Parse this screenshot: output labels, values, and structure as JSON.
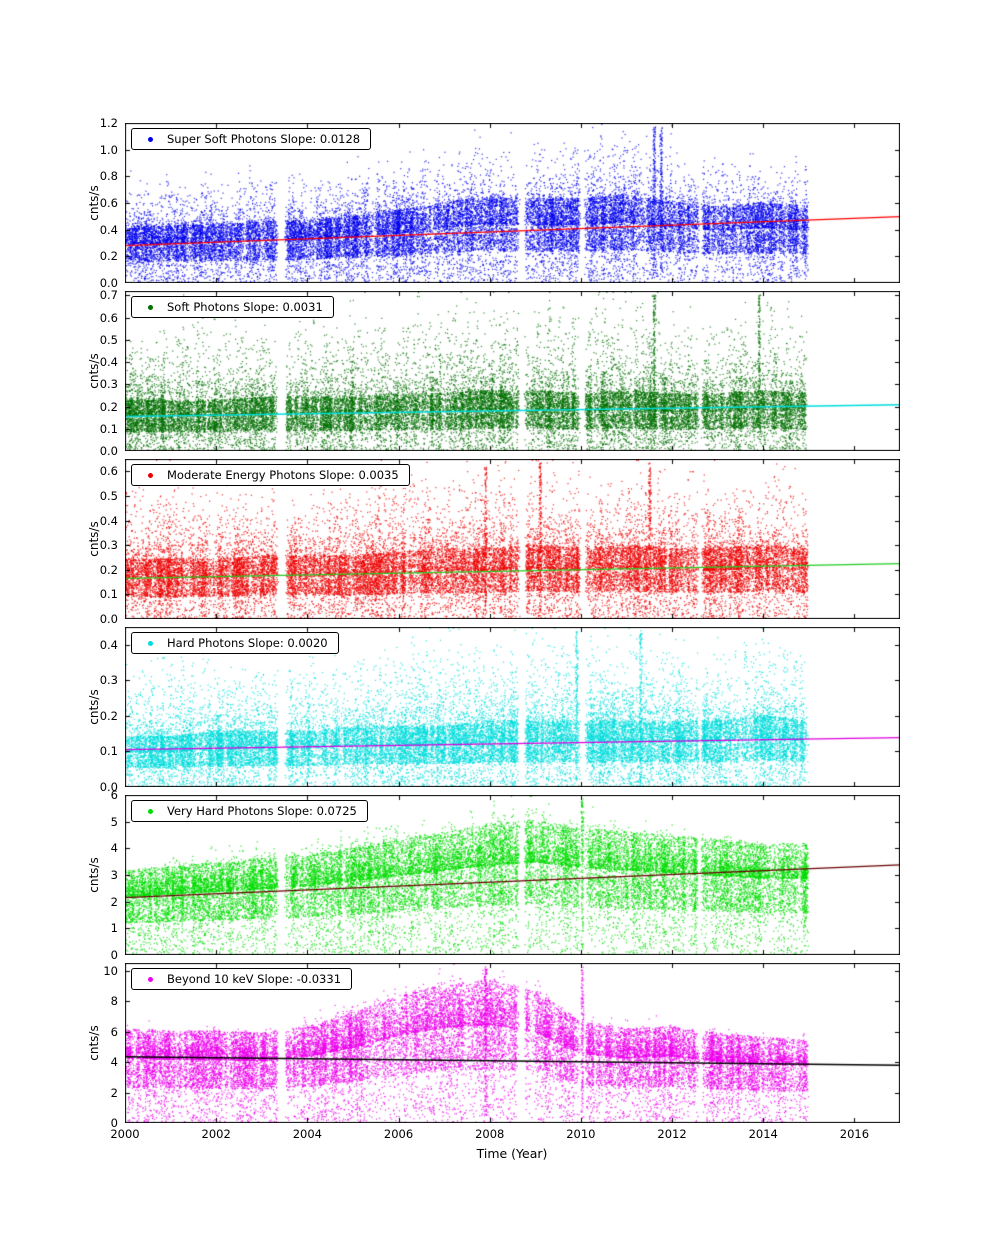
{
  "figure": {
    "background": "#ffffff"
  },
  "chart_data": {
    "type": "scatter",
    "title": "",
    "xlabel": "Time (Year)",
    "x_range": [
      2000,
      2017
    ],
    "x_data_range": [
      2000,
      2014.95
    ],
    "x_ticks": [
      2000,
      2002,
      2004,
      2006,
      2008,
      2010,
      2012,
      2014,
      2016
    ],
    "x_tick_labels": [
      "2000",
      "2002",
      "2004",
      "2006",
      "2008",
      "2010",
      "2012",
      "2014",
      "2016"
    ],
    "profile_years_range": [
      2000,
      2015
    ],
    "gap_bands": [
      [
        2003.32,
        2003.52
      ],
      [
        2008.62,
        2008.78
      ],
      [
        2009.95,
        2010.1
      ],
      [
        2012.55,
        2012.65
      ]
    ],
    "grid": false,
    "legend_position": "upper-left",
    "panels": [
      {
        "name": "super-soft-photons",
        "legend_label": "Super Soft Photons Slope: 0.0128",
        "slope": 0.0128,
        "ylabel": "cnts/s",
        "ylim": [
          0,
          1.2
        ],
        "yticks": [
          0.0,
          0.2,
          0.4,
          0.6,
          0.8,
          1.0,
          1.2
        ],
        "ytick_labels": [
          "0.0",
          "0.2",
          "0.4",
          "0.6",
          "0.8",
          "1.0",
          "1.2"
        ],
        "point_color": "#0000ee",
        "line_color": "#ff0000",
        "trend": {
          "x": [
            2000,
            2017
          ],
          "y": [
            0.28,
            0.498
          ]
        },
        "mean_level": [
          0.3,
          0.3,
          0.31,
          0.32,
          0.33,
          0.35,
          0.38,
          0.42,
          0.45,
          0.44,
          0.44,
          0.46,
          0.42,
          0.4,
          0.42,
          0.4
        ],
        "upper_level": [
          0.75,
          0.78,
          0.8,
          0.82,
          0.8,
          0.85,
          0.95,
          1.0,
          1.05,
          1.08,
          1.1,
          1.15,
          1.0,
          0.92,
          0.88,
          0.82
        ],
        "spike_years": [
          2011.6,
          2011.75
        ],
        "seed": 1
      },
      {
        "name": "soft-photons",
        "legend_label": "Soft Photons Slope: 0.0031",
        "slope": 0.0031,
        "ylabel": "cnts/s",
        "ylim": [
          0,
          0.72
        ],
        "yticks": [
          0.0,
          0.1,
          0.2,
          0.3,
          0.4,
          0.5,
          0.6,
          0.7
        ],
        "ytick_labels": [
          "0.0",
          "0.1",
          "0.2",
          "0.3",
          "0.4",
          "0.5",
          "0.6",
          "0.7"
        ],
        "point_color": "#007000",
        "line_color": "#00dddd",
        "trend": {
          "x": [
            2000,
            2017
          ],
          "y": [
            0.155,
            0.208
          ]
        },
        "mean_level": [
          0.16,
          0.16,
          0.16,
          0.17,
          0.17,
          0.17,
          0.18,
          0.18,
          0.19,
          0.19,
          0.18,
          0.19,
          0.18,
          0.18,
          0.19,
          0.18
        ],
        "upper_level": [
          0.55,
          0.58,
          0.58,
          0.55,
          0.58,
          0.6,
          0.62,
          0.65,
          0.68,
          0.68,
          0.65,
          0.7,
          0.62,
          0.6,
          0.65,
          0.6
        ],
        "spike_years": [
          2011.6,
          2013.9
        ],
        "seed": 2
      },
      {
        "name": "moderate-energy-photons",
        "legend_label": "Moderate Energy Photons Slope: 0.0035",
        "slope": 0.0035,
        "ylabel": "cnts/s",
        "ylim": [
          0,
          0.65
        ],
        "yticks": [
          0.0,
          0.1,
          0.2,
          0.3,
          0.4,
          0.5,
          0.6
        ],
        "ytick_labels": [
          "0.0",
          "0.1",
          "0.2",
          "0.3",
          "0.4",
          "0.5",
          "0.6"
        ],
        "point_color": "#ee0000",
        "line_color": "#22cc22",
        "trend": {
          "x": [
            2000,
            2017
          ],
          "y": [
            0.165,
            0.225
          ]
        },
        "mean_level": [
          0.17,
          0.17,
          0.17,
          0.18,
          0.18,
          0.18,
          0.19,
          0.2,
          0.2,
          0.21,
          0.2,
          0.21,
          0.2,
          0.2,
          0.21,
          0.2
        ],
        "upper_level": [
          0.55,
          0.58,
          0.55,
          0.55,
          0.55,
          0.58,
          0.58,
          0.6,
          0.62,
          0.62,
          0.6,
          0.62,
          0.58,
          0.55,
          0.6,
          0.55
        ],
        "spike_years": [
          2007.9,
          2009.1,
          2011.5
        ],
        "seed": 3
      },
      {
        "name": "hard-photons",
        "legend_label": "Hard Photons Slope: 0.0020",
        "slope": 0.002,
        "ylabel": "cnts/s",
        "ylim": [
          0,
          0.45
        ],
        "yticks": [
          0.0,
          0.1,
          0.2,
          0.3,
          0.4
        ],
        "ytick_labels": [
          "0.0",
          "0.1",
          "0.2",
          "0.3",
          "0.4"
        ],
        "point_color": "#00dddd",
        "line_color": "#dd00dd",
        "trend": {
          "x": [
            2000,
            2017
          ],
          "y": [
            0.105,
            0.139
          ]
        },
        "mean_level": [
          0.1,
          0.1,
          0.11,
          0.11,
          0.11,
          0.12,
          0.12,
          0.12,
          0.13,
          0.13,
          0.13,
          0.13,
          0.13,
          0.13,
          0.14,
          0.13
        ],
        "upper_level": [
          0.35,
          0.36,
          0.36,
          0.36,
          0.37,
          0.38,
          0.4,
          0.42,
          0.43,
          0.44,
          0.42,
          0.43,
          0.4,
          0.4,
          0.42,
          0.4
        ],
        "spike_years": [
          2009.9,
          2011.3
        ],
        "seed": 4
      },
      {
        "name": "very-hard-photons",
        "legend_label": "Very Hard Photons Slope: 0.0725",
        "slope": 0.0725,
        "ylabel": "cnts/s",
        "ylim": [
          0,
          6
        ],
        "yticks": [
          0,
          1,
          2,
          3,
          4,
          5,
          6
        ],
        "ytick_labels": [
          "0",
          "1",
          "2",
          "3",
          "4",
          "5",
          "6"
        ],
        "point_color": "#00dd00",
        "line_color": "#6b0000",
        "trend": {
          "x": [
            2000,
            2017
          ],
          "y": [
            2.15,
            3.38
          ]
        },
        "mean_level": [
          2.2,
          2.3,
          2.4,
          2.5,
          2.6,
          2.8,
          3.0,
          3.2,
          3.4,
          3.5,
          3.3,
          3.2,
          3.1,
          3.0,
          2.9,
          2.9
        ],
        "upper_level": [
          3.4,
          3.6,
          3.8,
          4.0,
          4.3,
          4.6,
          4.8,
          5.0,
          5.3,
          5.6,
          5.2,
          5.0,
          4.8,
          4.4,
          4.2,
          4.0
        ],
        "spike_years": [
          2010.02
        ],
        "seed": 5
      },
      {
        "name": "beyond-10-kev",
        "legend_label": "Beyond 10 keV Slope: -0.0331",
        "slope": -0.0331,
        "ylabel": "cnts/s",
        "ylim": [
          0,
          10.5
        ],
        "yticks": [
          0,
          2,
          4,
          6,
          8,
          10
        ],
        "ytick_labels": [
          "0",
          "2",
          "4",
          "6",
          "8",
          "10"
        ],
        "point_color": "#ee00ee",
        "line_color": "#000000",
        "trend": {
          "x": [
            2000,
            2017
          ],
          "y": [
            4.35,
            3.79
          ]
        },
        "mean_level": [
          4.3,
          4.2,
          4.2,
          4.1,
          4.4,
          5.0,
          5.8,
          6.3,
          6.5,
          6.0,
          4.6,
          4.3,
          4.4,
          4.1,
          3.9,
          3.8
        ],
        "upper_level": [
          6.3,
          6.2,
          6.2,
          6.2,
          6.8,
          7.8,
          9.0,
          9.8,
          10.0,
          9.5,
          6.8,
          6.4,
          6.5,
          6.0,
          5.6,
          5.4
        ],
        "spike_years": [
          2007.9,
          2010.02
        ],
        "seed": 6
      }
    ]
  }
}
